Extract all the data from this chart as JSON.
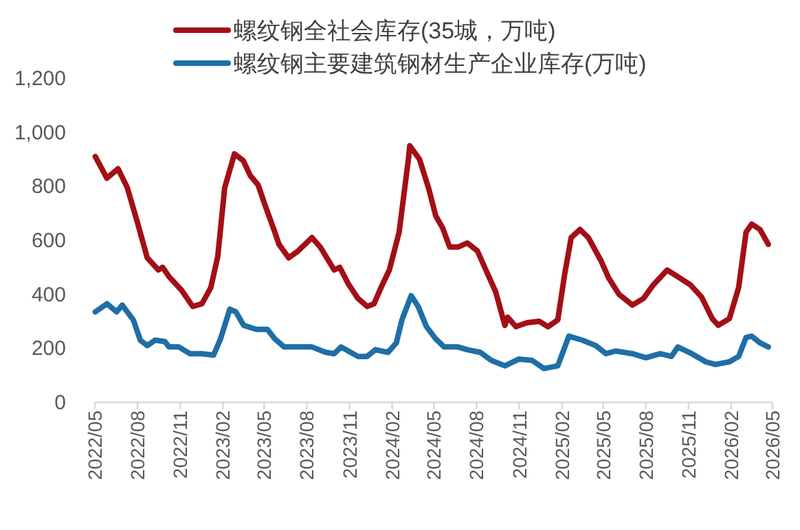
{
  "chart_data": {
    "type": "line",
    "legend": "top",
    "grid": false,
    "marker": "none",
    "line_style": "solid",
    "xlim": [
      "2022-05",
      "2026-05"
    ],
    "xticks": [
      {
        "value": "2022-05",
        "label": "2022/05"
      },
      {
        "value": "2022-08",
        "label": "2022/08"
      },
      {
        "value": "2022-11",
        "label": "2022/11"
      },
      {
        "value": "2023-02",
        "label": "2023/02"
      },
      {
        "value": "2023-05",
        "label": "2023/05"
      },
      {
        "value": "2023-08",
        "label": "2023/08"
      },
      {
        "value": "2023-11",
        "label": "2023/11"
      },
      {
        "value": "2024-02",
        "label": "2024/02"
      },
      {
        "value": "2024-05",
        "label": "2024/05"
      },
      {
        "value": "2024-08",
        "label": "2024/08"
      },
      {
        "value": "2024-11",
        "label": "2024/11"
      },
      {
        "value": "2025-02",
        "label": "2025/02"
      },
      {
        "value": "2025-05",
        "label": "2025/05"
      },
      {
        "value": "2025-08",
        "label": "2025/08"
      },
      {
        "value": "2025-11",
        "label": "2025/11"
      },
      {
        "value": "2026-02",
        "label": "2026/02"
      },
      {
        "value": "2026-05",
        "label": "2026/05"
      }
    ],
    "ylim": [
      0,
      1200
    ],
    "yticks": [
      {
        "value": 0,
        "label": "0"
      },
      {
        "value": 200,
        "label": "200"
      },
      {
        "value": 400,
        "label": "400"
      },
      {
        "value": 600,
        "label": "600"
      },
      {
        "value": 800,
        "label": "800"
      },
      {
        "value": 1000,
        "label": "1,000"
      },
      {
        "value": 1200,
        "label": "1,200"
      }
    ],
    "series": [
      {
        "name": "螺纹钢全社会库存(35城，万吨)",
        "color": "#a30f16",
        "x": [
          "2022-05-02",
          "2022-05-27",
          "2022-06-20",
          "2022-07-10",
          "2022-08-01",
          "2022-08-22",
          "2022-09-15",
          "2022-09-24",
          "2022-10-08",
          "2022-11-04",
          "2022-11-28",
          "2022-12-18",
          "2023-01-06",
          "2023-01-21",
          "2023-02-05",
          "2023-02-26",
          "2023-03-17",
          "2023-04-01",
          "2023-04-18",
          "2023-05-03",
          "2023-05-24",
          "2023-06-02",
          "2023-06-23",
          "2023-07-13",
          "2023-08-12",
          "2023-08-30",
          "2023-09-29",
          "2023-10-11",
          "2023-10-29",
          "2023-11-19",
          "2023-12-09",
          "2023-12-24",
          "2024-01-08",
          "2024-01-26",
          "2024-02-16",
          "2024-03-07",
          "2024-03-10",
          "2024-03-31",
          "2024-04-20",
          "2024-05-05",
          "2024-05-20",
          "2024-06-04",
          "2024-06-22",
          "2024-07-12",
          "2024-08-03",
          "2024-08-21",
          "2024-09-11",
          "2024-10-01",
          "2024-10-07",
          "2024-10-25",
          "2024-11-18",
          "2024-12-14",
          "2025-01-02",
          "2025-01-23",
          "2025-02-07",
          "2025-02-21",
          "2025-03-12",
          "2025-03-30",
          "2025-04-26",
          "2025-05-13",
          "2025-06-04",
          "2025-07-03",
          "2025-07-27",
          "2025-08-17",
          "2025-09-16",
          "2025-10-09",
          "2025-11-05",
          "2025-11-29",
          "2025-12-22",
          "2026-01-04",
          "2026-01-28",
          "2026-02-17",
          "2026-03-05",
          "2026-03-17",
          "2026-04-04",
          "2026-04-22"
        ],
        "values": [
          910,
          830,
          865,
          795,
          665,
          535,
          490,
          500,
          465,
          415,
          355,
          365,
          425,
          540,
          795,
          920,
          895,
          840,
          805,
          730,
          630,
          585,
          535,
          560,
          610,
          575,
          490,
          500,
          440,
          385,
          355,
          365,
          425,
          490,
          630,
          900,
          950,
          900,
          790,
          690,
          645,
          575,
          575,
          590,
          560,
          490,
          410,
          285,
          315,
          280,
          295,
          300,
          280,
          305,
          475,
          610,
          640,
          610,
          525,
          460,
          400,
          360,
          385,
          435,
          490,
          465,
          435,
          390,
          310,
          285,
          310,
          425,
          630,
          660,
          640,
          585
        ]
      },
      {
        "name": "螺纹钢主要建筑钢材生产企业库存(万吨)",
        "color": "#1f6ea6",
        "x": [
          "2022-05-02",
          "2022-05-27",
          "2022-06-17",
          "2022-06-29",
          "2022-07-23",
          "2022-08-07",
          "2022-08-22",
          "2022-09-08",
          "2022-09-29",
          "2022-10-08",
          "2022-10-29",
          "2022-11-22",
          "2022-12-18",
          "2023-01-12",
          "2023-01-27",
          "2023-02-16",
          "2023-03-01",
          "2023-03-18",
          "2023-04-14",
          "2023-05-08",
          "2023-05-24",
          "2023-06-13",
          "2023-07-07",
          "2023-08-12",
          "2023-09-11",
          "2023-09-29",
          "2023-10-14",
          "2023-11-19",
          "2023-12-09",
          "2023-12-27",
          "2024-01-23",
          "2024-02-10",
          "2024-02-22",
          "2024-03-13",
          "2024-03-28",
          "2024-04-15",
          "2024-05-05",
          "2024-05-23",
          "2024-06-22",
          "2024-07-12",
          "2024-08-09",
          "2024-09-02",
          "2024-10-01",
          "2024-10-31",
          "2024-11-29",
          "2024-12-24",
          "2025-01-23",
          "2025-02-16",
          "2025-03-17",
          "2025-04-15",
          "2025-05-07",
          "2025-05-28",
          "2025-07-03",
          "2025-08-01",
          "2025-09-01",
          "2025-09-25",
          "2025-10-09",
          "2025-11-08",
          "2025-12-08",
          "2025-12-29",
          "2026-01-28",
          "2026-02-17",
          "2026-03-05",
          "2026-03-17",
          "2026-04-04",
          "2026-04-22"
        ],
        "values": [
          335,
          365,
          335,
          360,
          305,
          230,
          210,
          230,
          225,
          205,
          205,
          180,
          180,
          175,
          235,
          345,
          335,
          285,
          270,
          270,
          235,
          205,
          205,
          205,
          185,
          180,
          205,
          170,
          170,
          195,
          185,
          220,
          305,
          395,
          355,
          280,
          235,
          205,
          205,
          195,
          185,
          155,
          135,
          160,
          155,
          125,
          135,
          245,
          230,
          210,
          180,
          190,
          180,
          165,
          180,
          170,
          205,
          180,
          150,
          140,
          150,
          170,
          240,
          245,
          220,
          205
        ]
      }
    ]
  }
}
